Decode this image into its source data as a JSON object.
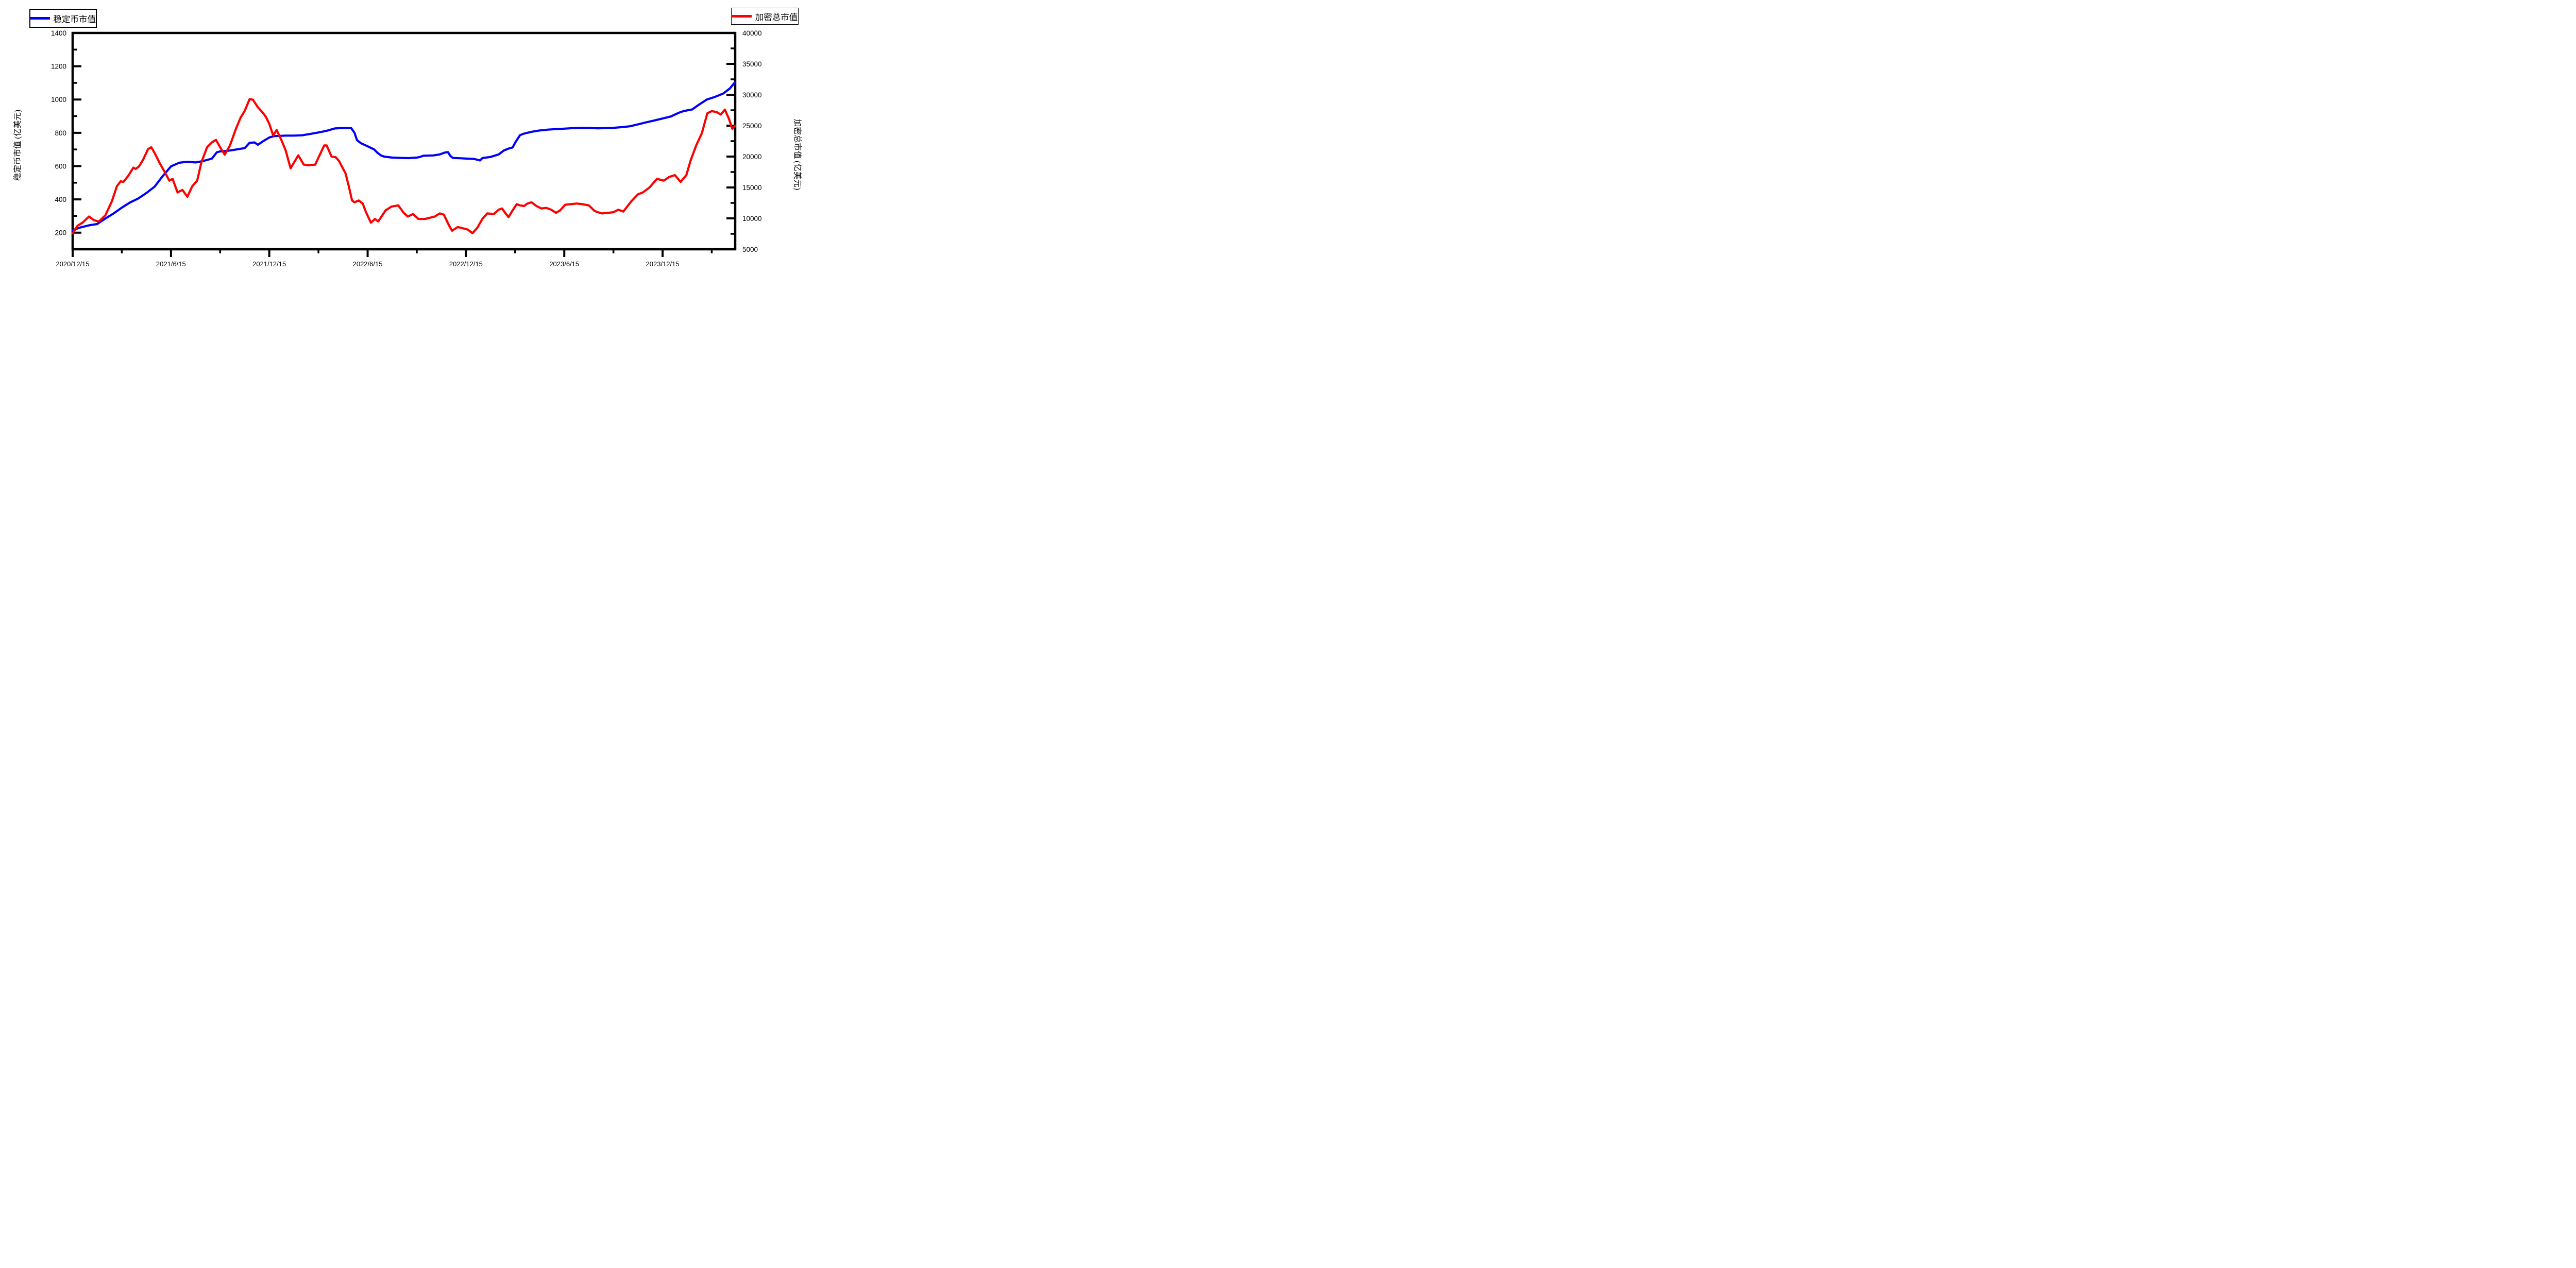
{
  "legend_left": {
    "label": "稳定币市值",
    "color": "#0000ff"
  },
  "legend_right": {
    "label": "加密总市值",
    "color": "#ff0000"
  },
  "chart_data": {
    "type": "line",
    "title": "",
    "background": "#ffffff",
    "frame_color": "#000000",
    "grid": false,
    "legend_position": "top-left and top-right, boxed",
    "x_axis": {
      "kind": "date",
      "tick_labels": [
        "2020/12/15",
        "2021/6/15",
        "2021/12/15",
        "2022/6/15",
        "2022/12/15",
        "2023/6/15",
        "2023/12/15"
      ],
      "tick_months": [
        0,
        6,
        12,
        18,
        24,
        30,
        36
      ],
      "minor_tick_months": [
        3,
        9,
        15,
        21,
        27,
        33,
        39
      ],
      "range_months": [
        0,
        40.43
      ],
      "range_dates": [
        "2020/12/15",
        "2024/4/28"
      ]
    },
    "left_axis": {
      "label": "稳定币市值 (亿美元)",
      "ticks": [
        200,
        400,
        600,
        800,
        1000,
        1200,
        1400
      ],
      "minor_ticks": [
        300,
        500,
        700,
        900,
        1100,
        1300
      ],
      "range": [
        100,
        1400
      ]
    },
    "right_axis": {
      "label": "加密总市值 (亿美元)",
      "ticks": [
        5000,
        10000,
        15000,
        20000,
        25000,
        30000,
        35000,
        40000
      ],
      "minor_ticks": [
        7500,
        12500,
        17500,
        22500,
        27500,
        32500,
        37500
      ],
      "range": [
        5000,
        40000
      ]
    },
    "series": [
      {
        "name": "稳定币市值",
        "axis": "left",
        "color": "#0000ff",
        "points_t_months_v": [
          [
            0,
            215
          ],
          [
            0.5,
            232
          ],
          [
            1,
            244
          ],
          [
            1.5,
            252
          ],
          [
            2,
            285
          ],
          [
            2.5,
            315
          ],
          [
            3,
            350
          ],
          [
            3.5,
            381
          ],
          [
            4,
            405
          ],
          [
            4.5,
            438
          ],
          [
            5,
            476
          ],
          [
            5.5,
            540
          ],
          [
            6,
            598
          ],
          [
            6.5,
            620
          ],
          [
            7,
            626
          ],
          [
            7.5,
            622
          ],
          [
            8,
            631
          ],
          [
            8.5,
            645
          ],
          [
            8.8,
            683
          ],
          [
            9,
            688
          ],
          [
            9.5,
            692
          ],
          [
            10,
            700
          ],
          [
            10.5,
            708
          ],
          [
            10.8,
            740
          ],
          [
            11.1,
            742
          ],
          [
            11.3,
            728
          ],
          [
            11.6,
            748
          ],
          [
            12,
            772
          ],
          [
            12.3,
            780
          ],
          [
            13,
            783
          ],
          [
            13.5,
            783
          ],
          [
            14,
            785
          ],
          [
            14.5,
            793
          ],
          [
            15,
            802
          ],
          [
            15.5,
            812
          ],
          [
            16,
            826
          ],
          [
            16.5,
            829
          ],
          [
            17,
            828
          ],
          [
            17.2,
            800
          ],
          [
            17.35,
            756
          ],
          [
            17.6,
            737
          ],
          [
            18,
            719
          ],
          [
            18.4,
            700
          ],
          [
            18.6,
            680
          ],
          [
            18.8,
            665
          ],
          [
            19,
            657
          ],
          [
            19.5,
            651
          ],
          [
            20,
            649
          ],
          [
            20.5,
            648
          ],
          [
            21,
            651
          ],
          [
            21.2,
            655
          ],
          [
            21.4,
            662
          ],
          [
            22,
            664
          ],
          [
            22.4,
            670
          ],
          [
            22.7,
            681
          ],
          [
            22.9,
            684
          ],
          [
            23.05,
            661
          ],
          [
            23.2,
            649
          ],
          [
            23.7,
            647
          ],
          [
            24,
            645
          ],
          [
            24.5,
            643
          ],
          [
            24.86,
            634
          ],
          [
            25,
            648
          ],
          [
            25.5,
            655
          ],
          [
            26,
            670
          ],
          [
            26.3,
            693
          ],
          [
            26.6,
            705
          ],
          [
            26.85,
            712
          ],
          [
            27.05,
            748
          ],
          [
            27.3,
            786
          ],
          [
            27.5,
            794
          ],
          [
            28,
            806
          ],
          [
            28.5,
            814
          ],
          [
            29,
            819
          ],
          [
            29.5,
            822
          ],
          [
            30,
            825
          ],
          [
            30.5,
            828
          ],
          [
            31,
            830
          ],
          [
            31.5,
            830
          ],
          [
            32,
            827
          ],
          [
            32.5,
            828
          ],
          [
            33,
            830
          ],
          [
            33.5,
            834
          ],
          [
            34,
            839
          ],
          [
            34.5,
            851
          ],
          [
            35,
            863
          ],
          [
            35.5,
            874
          ],
          [
            36,
            886
          ],
          [
            36.5,
            898
          ],
          [
            37,
            921
          ],
          [
            37.3,
            931
          ],
          [
            37.8,
            940
          ],
          [
            38.2,
            968
          ],
          [
            38.7,
            1000
          ],
          [
            39.2,
            1016
          ],
          [
            39.7,
            1036
          ],
          [
            40.1,
            1066
          ],
          [
            40.43,
            1105
          ]
        ]
      },
      {
        "name": "加密总市值",
        "axis": "right",
        "color": "#ff0000",
        "points_t_months_v": [
          [
            0,
            7600
          ],
          [
            0.3,
            8800
          ],
          [
            0.6,
            9300
          ],
          [
            1,
            10300
          ],
          [
            1.3,
            9700
          ],
          [
            1.6,
            9500
          ],
          [
            2,
            10500
          ],
          [
            2.4,
            12800
          ],
          [
            2.7,
            15200
          ],
          [
            2.93,
            16000
          ],
          [
            3.1,
            15900
          ],
          [
            3.4,
            16900
          ],
          [
            3.7,
            18200
          ],
          [
            3.85,
            18000
          ],
          [
            4.05,
            18400
          ],
          [
            4.3,
            19500
          ],
          [
            4.6,
            21200
          ],
          [
            4.8,
            21500
          ],
          [
            5,
            20600
          ],
          [
            5.3,
            19000
          ],
          [
            5.6,
            17600
          ],
          [
            5.9,
            16100
          ],
          [
            6.1,
            16400
          ],
          [
            6.4,
            14200
          ],
          [
            6.7,
            14600
          ],
          [
            7,
            13500
          ],
          [
            7.3,
            15200
          ],
          [
            7.6,
            16100
          ],
          [
            7.85,
            19000
          ],
          [
            8.2,
            21500
          ],
          [
            8.5,
            22300
          ],
          [
            8.75,
            22700
          ],
          [
            9,
            21500
          ],
          [
            9.28,
            20300
          ],
          [
            9.6,
            21800
          ],
          [
            9.95,
            24400
          ],
          [
            10.25,
            26300
          ],
          [
            10.5,
            27400
          ],
          [
            10.8,
            29300
          ],
          [
            11,
            29200
          ],
          [
            11.3,
            28000
          ],
          [
            11.6,
            27100
          ],
          [
            11.8,
            26400
          ],
          [
            12,
            25300
          ],
          [
            12.24,
            23400
          ],
          [
            12.45,
            24300
          ],
          [
            12.75,
            22600
          ],
          [
            13,
            21000
          ],
          [
            13.3,
            18100
          ],
          [
            13.77,
            20200
          ],
          [
            14.1,
            18700
          ],
          [
            14.4,
            18600
          ],
          [
            14.8,
            18700
          ],
          [
            15.1,
            20400
          ],
          [
            15.35,
            21800
          ],
          [
            15.5,
            21800
          ],
          [
            15.8,
            20000
          ],
          [
            16.05,
            19900
          ],
          [
            16.25,
            19300
          ],
          [
            16.45,
            18300
          ],
          [
            16.65,
            17300
          ],
          [
            16.85,
            15200
          ],
          [
            17.05,
            12900
          ],
          [
            17.2,
            12600
          ],
          [
            17.45,
            12900
          ],
          [
            17.7,
            12400
          ],
          [
            17.9,
            11000
          ],
          [
            18.2,
            9300
          ],
          [
            18.45,
            9900
          ],
          [
            18.65,
            9500
          ],
          [
            19.1,
            11300
          ],
          [
            19.45,
            11900
          ],
          [
            19.87,
            12100
          ],
          [
            20.2,
            10900
          ],
          [
            20.45,
            10300
          ],
          [
            20.77,
            10700
          ],
          [
            21.1,
            9900
          ],
          [
            21.5,
            9900
          ],
          [
            21.8,
            10100
          ],
          [
            22.1,
            10300
          ],
          [
            22.4,
            10800
          ],
          [
            22.65,
            10600
          ],
          [
            22.96,
            8900
          ],
          [
            23.15,
            8000
          ],
          [
            23.5,
            8600
          ],
          [
            23.8,
            8400
          ],
          [
            24.1,
            8200
          ],
          [
            24.4,
            7600
          ],
          [
            24.7,
            8500
          ],
          [
            25,
            9900
          ],
          [
            25.3,
            10800
          ],
          [
            25.7,
            10700
          ],
          [
            26,
            11400
          ],
          [
            26.2,
            11600
          ],
          [
            26.45,
            10700
          ],
          [
            26.6,
            10200
          ],
          [
            26.85,
            11300
          ],
          [
            27.1,
            12300
          ],
          [
            27.3,
            12100
          ],
          [
            27.55,
            12000
          ],
          [
            27.75,
            12400
          ],
          [
            28,
            12600
          ],
          [
            28.3,
            12000
          ],
          [
            28.6,
            11600
          ],
          [
            28.9,
            11700
          ],
          [
            29.2,
            11400
          ],
          [
            29.5,
            10900
          ],
          [
            29.75,
            11300
          ],
          [
            30.05,
            12200
          ],
          [
            30.4,
            12300
          ],
          [
            30.75,
            12400
          ],
          [
            31.1,
            12300
          ],
          [
            31.5,
            12100
          ],
          [
            31.85,
            11200
          ],
          [
            32.05,
            11000
          ],
          [
            32.3,
            10800
          ],
          [
            32.7,
            10900
          ],
          [
            33,
            11000
          ],
          [
            33.3,
            11400
          ],
          [
            33.6,
            11100
          ],
          [
            34.1,
            12800
          ],
          [
            34.5,
            13900
          ],
          [
            34.8,
            14200
          ],
          [
            35.2,
            15000
          ],
          [
            35.66,
            16400
          ],
          [
            36.07,
            16100
          ],
          [
            36.4,
            16700
          ],
          [
            36.75,
            17000
          ],
          [
            37.1,
            15900
          ],
          [
            37.45,
            17000
          ],
          [
            37.7,
            19300
          ],
          [
            38.05,
            21800
          ],
          [
            38.4,
            23800
          ],
          [
            38.73,
            27000
          ],
          [
            39,
            27350
          ],
          [
            39.3,
            27200
          ],
          [
            39.55,
            26800
          ],
          [
            39.8,
            27600
          ],
          [
            40.05,
            26100
          ],
          [
            40.25,
            24500
          ],
          [
            40.43,
            25000
          ]
        ]
      }
    ]
  }
}
